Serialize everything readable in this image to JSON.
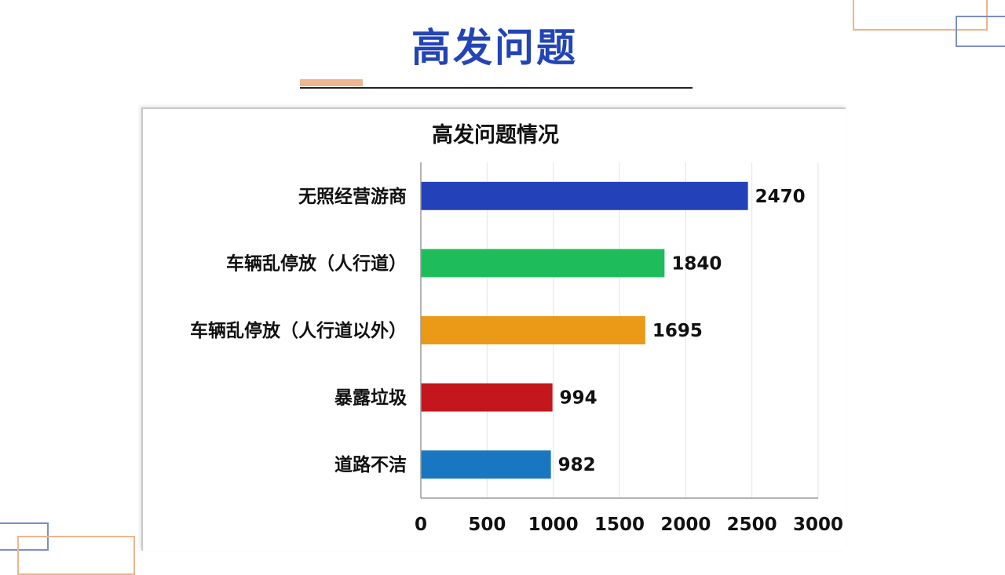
{
  "page": {
    "title": "高发问题"
  },
  "colors": {
    "title": "#2344b5",
    "accent": "#eeb58e",
    "deco_blue": "#7b8fc4"
  },
  "chart_data": {
    "type": "bar",
    "orientation": "horizontal",
    "title": "高发问题情况",
    "categories": [
      "无照经营游商",
      "车辆乱停放（人行道）",
      "车辆乱停放（人行道以外）",
      "暴露垃圾",
      "道路不洁"
    ],
    "values": [
      2470,
      1840,
      1695,
      994,
      982
    ],
    "bar_colors": [
      "#2341b8",
      "#1fbc5b",
      "#ea9a16",
      "#c4161d",
      "#1977c2"
    ],
    "xlim": [
      0,
      3000
    ],
    "xticks": [
      0,
      500,
      1000,
      1500,
      2000,
      2500,
      3000
    ],
    "grid": true,
    "data_labels": true,
    "xlabel": "",
    "ylabel": ""
  }
}
